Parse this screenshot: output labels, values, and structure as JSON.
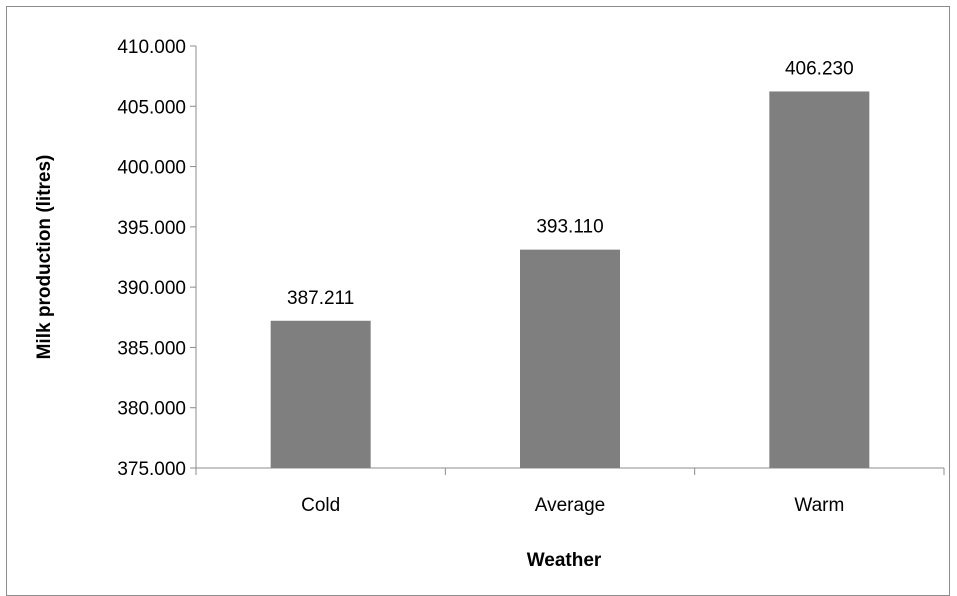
{
  "chart_data": {
    "type": "bar",
    "categories": [
      "Cold",
      "Average",
      "Warm"
    ],
    "values": [
      387.211,
      393.11,
      406.23
    ],
    "value_labels": [
      "387.211",
      "393.110",
      "406.230"
    ],
    "xlabel": "Weather",
    "ylabel": "Milk production (litres)",
    "ylim": [
      375,
      410
    ],
    "y_ticks": [
      375,
      380,
      385,
      390,
      395,
      400,
      405,
      410
    ],
    "y_tick_labels": [
      "375.000",
      "380.000",
      "385.000",
      "390.000",
      "395.000",
      "400.000",
      "405.000",
      "410.000"
    ],
    "bar_color": "#7f7f7f",
    "gridlines": false,
    "legend": "none"
  }
}
